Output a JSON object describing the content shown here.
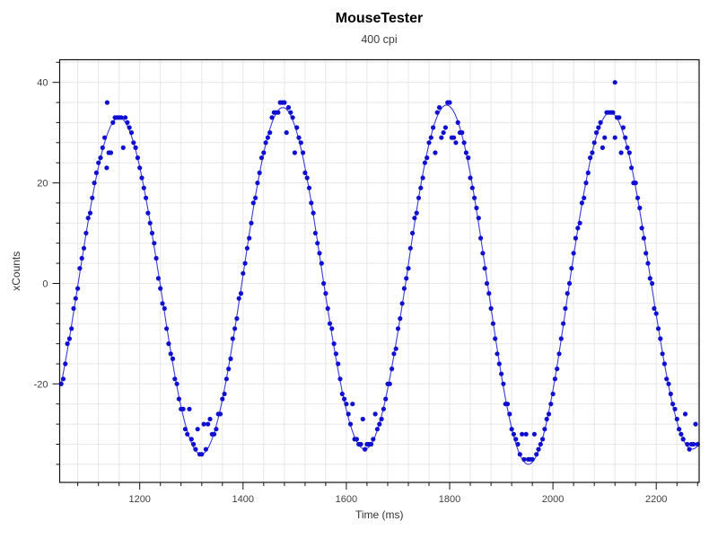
{
  "header": {
    "title": "MouseTester",
    "subtitle": "400 cpi"
  },
  "chart_data": {
    "type": "scatter",
    "overlay_line": true,
    "title": "MouseTester",
    "subtitle": "400 cpi",
    "xlabel": "Time (ms)",
    "ylabel": "xCounts",
    "x_range": [
      1045,
      2283
    ],
    "y_range": [
      -39.6,
      44.5
    ],
    "x_major_ticks": [
      1200,
      1400,
      1600,
      1800,
      2000,
      2200
    ],
    "x_minor_step_ms": 40,
    "y_major_ticks": [
      -20,
      0,
      20,
      40
    ],
    "y_minor_step": 4,
    "grid": true,
    "legend": "none",
    "point_color": "#0f0fd0",
    "line_color": "#3b3bd6",
    "grid_color": "#e7e7e7",
    "axis_color": "#111111",
    "tick_label_color": "#3f3f3f",
    "point_radius_px": 2.6,
    "sample_interval_ms": 4,
    "wave": {
      "shape": "sine",
      "period_ms": 317,
      "first_peak_t_ms": 1160,
      "extrema": [
        {
          "t": 1160,
          "v": 33
        },
        {
          "t": 1319,
          "v": -34
        },
        {
          "t": 1478,
          "v": 35
        },
        {
          "t": 1637,
          "v": -33
        },
        {
          "t": 1796,
          "v": 35.5
        },
        {
          "t": 1955,
          "v": -36
        },
        {
          "t": 2114,
          "v": 34
        },
        {
          "t": 2273,
          "v": -33
        }
      ],
      "quantized_to_integers": true,
      "secondary_band_offset": -4.5,
      "secondary_band_fraction": 0.38,
      "secondary_band_threshold": 0.88,
      "noise_amplitude": 0.9,
      "noise_seed": 7
    },
    "outliers": [
      {
        "t": 1137,
        "v": 36
      },
      {
        "t": 2120,
        "v": 40
      }
    ]
  }
}
